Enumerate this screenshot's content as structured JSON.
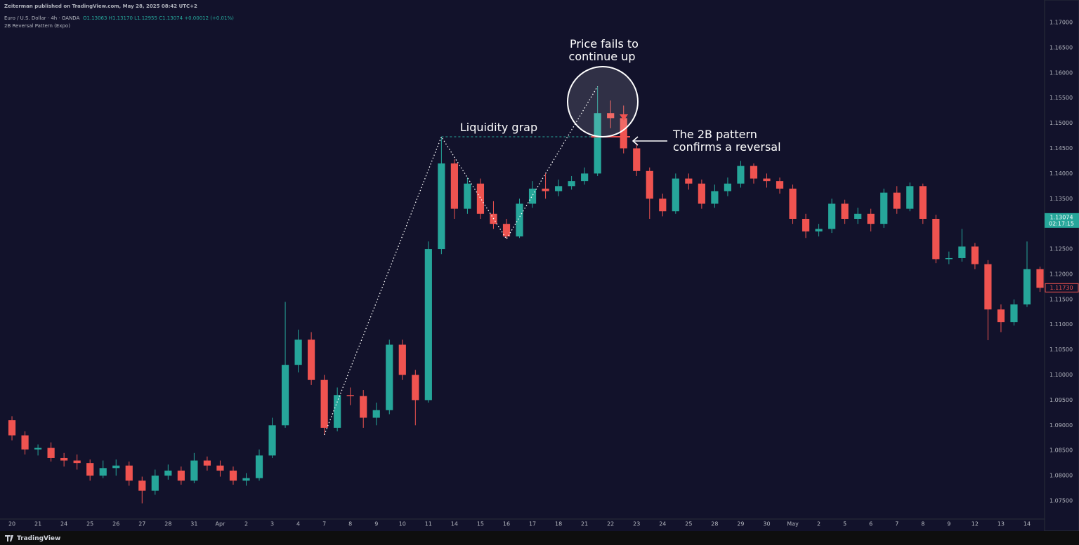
{
  "header": {
    "publisher": "Zeiterman published on TradingView.com, May 28, 2025 08:42 UTC+2",
    "symbol": "Euro / U.S. Dollar · 4h · OANDA",
    "ohlc": "O1.13063 H1.13170 L1.12955 C1.13074 +0.00012 (+0.01%)",
    "indicator": "2B Reversal Pattern (Expo)"
  },
  "footer": {
    "brand": "TradingView"
  },
  "chart_data": {
    "type": "candlestick",
    "annotations": {
      "fail": [
        "Price fails to",
        "continue up"
      ],
      "liquidity": "Liquidity grap",
      "confirm": [
        "The 2B pattern",
        "confirms a reversal"
      ]
    },
    "xlim": [
      -0.92,
      79.35
    ],
    "xticks": [
      {
        "value": 0,
        "label": "20"
      },
      {
        "value": 2,
        "label": "21"
      },
      {
        "value": 4,
        "label": "24"
      },
      {
        "value": 6,
        "label": "25"
      },
      {
        "value": 8,
        "label": "26"
      },
      {
        "value": 10,
        "label": "27"
      },
      {
        "value": 12,
        "label": "28"
      },
      {
        "value": 14,
        "label": "31"
      },
      {
        "value": 16,
        "label": "Apr"
      },
      {
        "value": 18,
        "label": "2"
      },
      {
        "value": 20,
        "label": "3"
      },
      {
        "value": 22,
        "label": "4"
      },
      {
        "value": 24,
        "label": "7"
      },
      {
        "value": 26,
        "label": "8"
      },
      {
        "value": 28,
        "label": "9"
      },
      {
        "value": 30,
        "label": "10"
      },
      {
        "value": 32,
        "label": "11"
      },
      {
        "value": 34,
        "label": "14"
      },
      {
        "value": 36,
        "label": "15"
      },
      {
        "value": 38,
        "label": "16"
      },
      {
        "value": 40,
        "label": "17"
      },
      {
        "value": 42,
        "label": "18"
      },
      {
        "value": 44,
        "label": "21"
      },
      {
        "value": 46,
        "label": "22"
      },
      {
        "value": 48,
        "label": "23"
      },
      {
        "value": 50,
        "label": "24"
      },
      {
        "value": 52,
        "label": "25"
      },
      {
        "value": 54,
        "label": "28"
      },
      {
        "value": 56,
        "label": "29"
      },
      {
        "value": 58,
        "label": "30"
      },
      {
        "value": 60,
        "label": "May"
      },
      {
        "value": 62,
        "label": "2"
      },
      {
        "value": 64,
        "label": "5"
      },
      {
        "value": 66,
        "label": "6"
      },
      {
        "value": 68,
        "label": "7"
      },
      {
        "value": 70,
        "label": "8"
      },
      {
        "value": 72,
        "label": "9"
      },
      {
        "value": 74,
        "label": "12"
      },
      {
        "value": 76,
        "label": "13"
      },
      {
        "value": 78,
        "label": "14"
      }
    ],
    "ylim": [
      1.07068,
      1.17446
    ],
    "yticks": [
      {
        "value": 1.075,
        "label": "1.07500"
      },
      {
        "value": 1.08,
        "label": "1.08000"
      },
      {
        "value": 1.085,
        "label": "1.08500"
      },
      {
        "value": 1.09,
        "label": "1.09000"
      },
      {
        "value": 1.095,
        "label": "1.09500"
      },
      {
        "value": 1.1,
        "label": "1.10000"
      },
      {
        "value": 1.105,
        "label": "1.10500"
      },
      {
        "value": 1.11,
        "label": "1.11000"
      },
      {
        "value": 1.115,
        "label": "1.11500"
      },
      {
        "value": 1.12,
        "label": "1.12000"
      },
      {
        "value": 1.125,
        "label": "1.12500"
      },
      {
        "value": 1.13,
        "label": "1.13000"
      },
      {
        "value": 1.135,
        "label": "1.13500"
      },
      {
        "value": 1.14,
        "label": "1.14000"
      },
      {
        "value": 1.145,
        "label": "1.14500"
      },
      {
        "value": 1.15,
        "label": "1.15000"
      },
      {
        "value": 1.155,
        "label": "1.15500"
      },
      {
        "value": 1.16,
        "label": "1.16000"
      },
      {
        "value": 1.165,
        "label": "1.16500"
      },
      {
        "value": 1.17,
        "label": "1.17000"
      }
    ],
    "last_price": 1.13074,
    "countdown": "02:17:15",
    "last_color": "#26a69a",
    "marker_price": {
      "value": 1.1173,
      "label": "1.11730"
    },
    "marker_color": "#ef5350",
    "series": [
      {
        "name": "Euro / U.S. Dollar · 4h · OANDA",
        "up_color": "#26a69a",
        "down_color": "#ef5350",
        "open": [
          1.091,
          1.088,
          1.0852,
          1.0855,
          1.0835,
          1.083,
          1.0825,
          1.08,
          1.0815,
          1.082,
          1.079,
          1.077,
          1.08,
          1.081,
          1.079,
          1.083,
          1.082,
          1.081,
          1.079,
          1.0795,
          1.084,
          1.09,
          1.102,
          1.107,
          1.099,
          1.0895,
          1.096,
          1.0958,
          1.0915,
          1.093,
          1.106,
          1.1,
          1.095,
          1.125,
          1.142,
          1.133,
          1.138,
          1.132,
          1.13,
          1.1275,
          1.134,
          1.137,
          1.1365,
          1.1375,
          1.1385,
          1.14,
          1.152,
          1.151,
          1.145,
          1.1405,
          1.135,
          1.1325,
          1.139,
          1.138,
          1.134,
          1.1365,
          1.138,
          1.1415,
          1.139,
          1.1385,
          1.137,
          1.131,
          1.1285,
          1.129,
          1.134,
          1.131,
          1.132,
          1.13,
          1.1362,
          1.133,
          1.1375,
          1.131,
          1.123,
          1.1232,
          1.1255,
          1.122,
          1.113,
          1.1105,
          1.114,
          1.121
        ],
        "high": [
          1.0918,
          1.0888,
          1.0862,
          1.0866,
          1.0845,
          1.0842,
          1.0832,
          1.083,
          1.0832,
          1.0828,
          1.0798,
          1.0812,
          1.0822,
          1.0818,
          1.0845,
          1.0838,
          1.083,
          1.0818,
          1.0805,
          1.0852,
          1.0915,
          1.1145,
          1.109,
          1.1085,
          1.1,
          1.0975,
          1.0975,
          1.097,
          1.0945,
          1.107,
          1.107,
          1.101,
          1.1265,
          1.1473,
          1.1428,
          1.1392,
          1.139,
          1.1345,
          1.131,
          1.135,
          1.1385,
          1.14,
          1.1388,
          1.1395,
          1.1412,
          1.1573,
          1.1545,
          1.1535,
          1.146,
          1.1412,
          1.136,
          1.14,
          1.14,
          1.1388,
          1.1378,
          1.1392,
          1.1425,
          1.142,
          1.14,
          1.1392,
          1.1378,
          1.132,
          1.13,
          1.135,
          1.1348,
          1.1332,
          1.133,
          1.137,
          1.1375,
          1.1382,
          1.138,
          1.1318,
          1.1245,
          1.129,
          1.1262,
          1.1228,
          1.114,
          1.115,
          1.1265,
          1.1215
        ],
        "low": [
          1.087,
          1.0842,
          1.084,
          1.0828,
          1.0818,
          1.0812,
          1.079,
          1.0795,
          1.08,
          1.078,
          1.0745,
          1.0762,
          1.0792,
          1.0782,
          1.0785,
          1.081,
          1.0798,
          1.0782,
          1.078,
          1.079,
          1.0835,
          1.0895,
          1.1005,
          1.098,
          1.0881,
          1.0888,
          1.094,
          1.0895,
          1.09,
          1.0922,
          1.099,
          1.09,
          1.0945,
          1.124,
          1.131,
          1.132,
          1.131,
          1.129,
          1.127,
          1.1272,
          1.1332,
          1.135,
          1.1355,
          1.1368,
          1.1378,
          1.1395,
          1.149,
          1.144,
          1.1395,
          1.131,
          1.1315,
          1.132,
          1.1368,
          1.133,
          1.1332,
          1.1355,
          1.1372,
          1.138,
          1.1372,
          1.136,
          1.13,
          1.1272,
          1.1275,
          1.1282,
          1.13,
          1.13,
          1.1285,
          1.1292,
          1.132,
          1.1325,
          1.13,
          1.1222,
          1.122,
          1.1225,
          1.121,
          1.1069,
          1.1085,
          1.1098,
          1.1135,
          1.1165
        ],
        "close": [
          1.088,
          1.0852,
          1.0855,
          1.0835,
          1.083,
          1.0825,
          1.08,
          1.0815,
          1.082,
          1.079,
          1.077,
          1.08,
          1.081,
          1.079,
          1.083,
          1.082,
          1.081,
          1.079,
          1.0795,
          1.084,
          1.09,
          1.102,
          1.107,
          1.099,
          1.0895,
          1.096,
          1.0958,
          1.0915,
          1.093,
          1.106,
          1.1,
          1.095,
          1.125,
          1.142,
          1.133,
          1.138,
          1.132,
          1.13,
          1.1275,
          1.134,
          1.137,
          1.1365,
          1.1375,
          1.1385,
          1.14,
          1.152,
          1.151,
          1.145,
          1.1405,
          1.135,
          1.1325,
          1.139,
          1.138,
          1.134,
          1.1365,
          1.138,
          1.1415,
          1.139,
          1.1385,
          1.137,
          1.131,
          1.1285,
          1.129,
          1.134,
          1.131,
          1.132,
          1.13,
          1.1362,
          1.133,
          1.1375,
          1.131,
          1.123,
          1.1232,
          1.1255,
          1.122,
          1.113,
          1.1105,
          1.114,
          1.121,
          1.1173
        ]
      }
    ]
  }
}
